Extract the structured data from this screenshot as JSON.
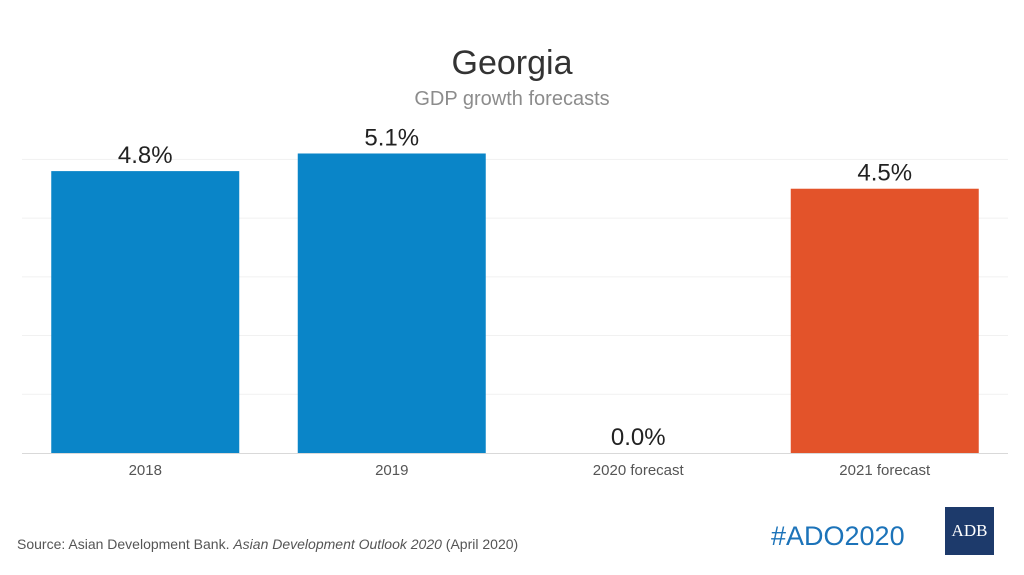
{
  "chart_data": {
    "type": "bar",
    "title": "Georgia",
    "subtitle": "GDP growth forecasts",
    "categories": [
      "2018",
      "2019",
      "2020 forecast",
      "2021 forecast"
    ],
    "values": [
      4.8,
      5.1,
      0.0,
      4.5
    ],
    "value_labels": [
      "4.8%",
      "5.1%",
      "0.0%",
      "4.5%"
    ],
    "bar_colors": [
      "#0a85c8",
      "#0a85c8",
      "#0a85c8",
      "#e3532a"
    ],
    "ylim": [
      0,
      5.5
    ],
    "grid": true,
    "legend": "none"
  },
  "source": {
    "prefix": "Source: Asian Development Bank. ",
    "publication": "Asian Development Outlook 2020",
    "suffix": " (April 2020)"
  },
  "hashtag": "#ADO2020",
  "logo_text": "ADB"
}
